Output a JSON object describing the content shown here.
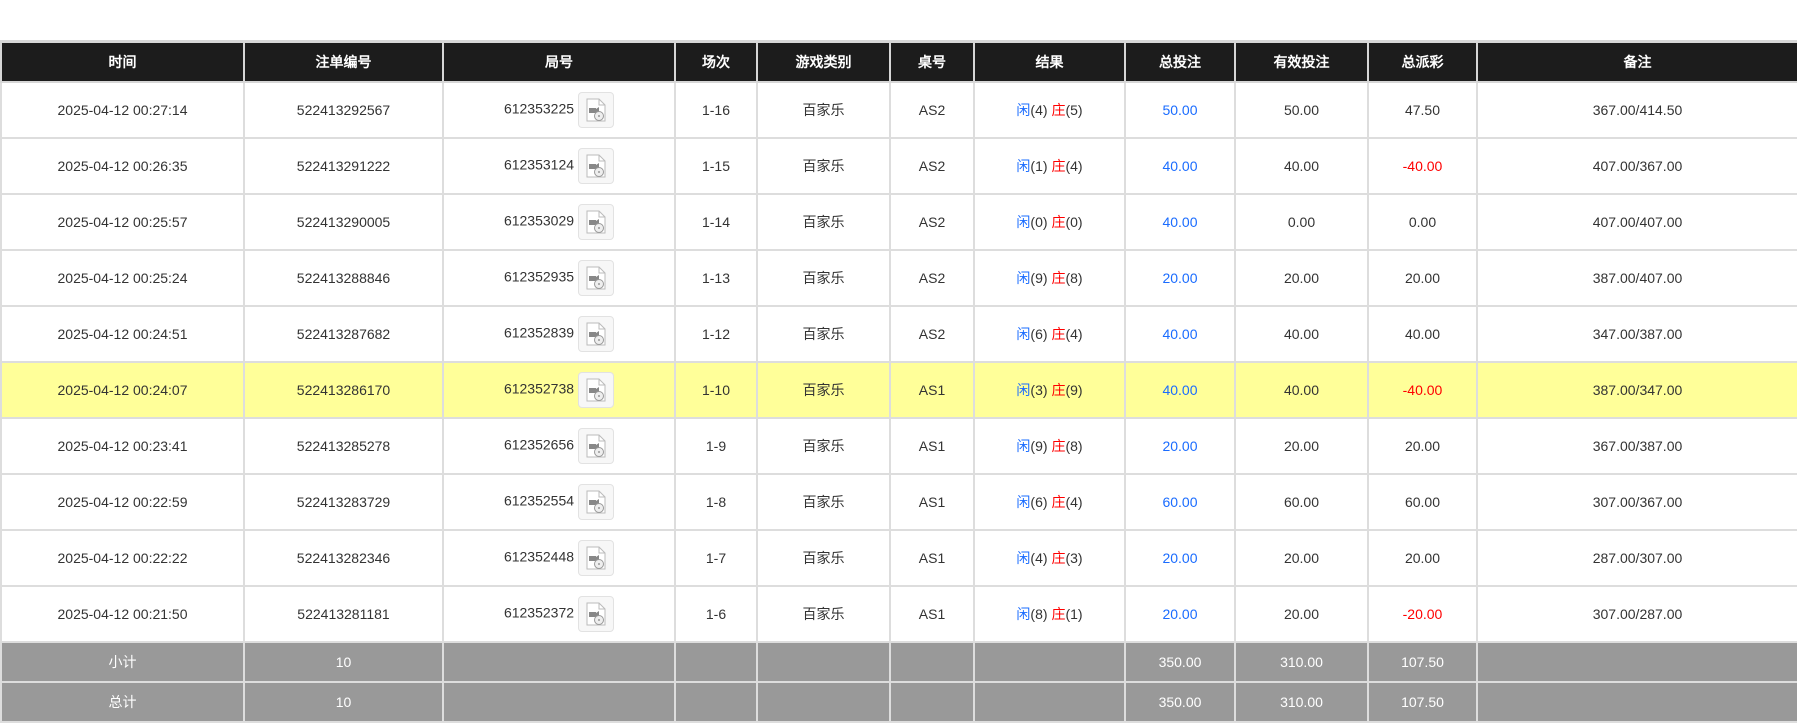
{
  "headers": [
    "时间",
    "注单编号",
    "局号",
    "场次",
    "游戏类别",
    "桌号",
    "结果",
    "总投注",
    "有效投注",
    "总派彩",
    "备注"
  ],
  "rows": [
    {
      "time": "2025-04-12 00:27:14",
      "bet_id": "522413292567",
      "round": "612353225",
      "session": "1-16",
      "game": "百家乐",
      "table": "AS2",
      "player_label": "闲",
      "player": "(4)",
      "banker_label": "庄",
      "banker": "(5)",
      "total_bet": "50.00",
      "valid_bet": "50.00",
      "payout": "47.50",
      "payout_negative": false,
      "note": "367.00/414.50",
      "highlight": false
    },
    {
      "time": "2025-04-12 00:26:35",
      "bet_id": "522413291222",
      "round": "612353124",
      "session": "1-15",
      "game": "百家乐",
      "table": "AS2",
      "player_label": "闲",
      "player": "(1)",
      "banker_label": "庄",
      "banker": "(4)",
      "total_bet": "40.00",
      "valid_bet": "40.00",
      "payout": "-40.00",
      "payout_negative": true,
      "note": "407.00/367.00",
      "highlight": false
    },
    {
      "time": "2025-04-12 00:25:57",
      "bet_id": "522413290005",
      "round": "612353029",
      "session": "1-14",
      "game": "百家乐",
      "table": "AS2",
      "player_label": "闲",
      "player": "(0)",
      "banker_label": "庄",
      "banker": "(0)",
      "total_bet": "40.00",
      "valid_bet": "0.00",
      "payout": "0.00",
      "payout_negative": false,
      "note": "407.00/407.00",
      "highlight": false
    },
    {
      "time": "2025-04-12 00:25:24",
      "bet_id": "522413288846",
      "round": "612352935",
      "session": "1-13",
      "game": "百家乐",
      "table": "AS2",
      "player_label": "闲",
      "player": "(9)",
      "banker_label": "庄",
      "banker": "(8)",
      "total_bet": "20.00",
      "valid_bet": "20.00",
      "payout": "20.00",
      "payout_negative": false,
      "note": "387.00/407.00",
      "highlight": false
    },
    {
      "time": "2025-04-12 00:24:51",
      "bet_id": "522413287682",
      "round": "612352839",
      "session": "1-12",
      "game": "百家乐",
      "table": "AS2",
      "player_label": "闲",
      "player": "(6)",
      "banker_label": "庄",
      "banker": "(4)",
      "total_bet": "40.00",
      "valid_bet": "40.00",
      "payout": "40.00",
      "payout_negative": false,
      "note": "347.00/387.00",
      "highlight": false
    },
    {
      "time": "2025-04-12 00:24:07",
      "bet_id": "522413286170",
      "round": "612352738",
      "session": "1-10",
      "game": "百家乐",
      "table": "AS1",
      "player_label": "闲",
      "player": "(3)",
      "banker_label": "庄",
      "banker": "(9)",
      "total_bet": "40.00",
      "valid_bet": "40.00",
      "payout": "-40.00",
      "payout_negative": true,
      "note": "387.00/347.00",
      "highlight": true
    },
    {
      "time": "2025-04-12 00:23:41",
      "bet_id": "522413285278",
      "round": "612352656",
      "session": "1-9",
      "game": "百家乐",
      "table": "AS1",
      "player_label": "闲",
      "player": "(9)",
      "banker_label": "庄",
      "banker": "(8)",
      "total_bet": "20.00",
      "valid_bet": "20.00",
      "payout": "20.00",
      "payout_negative": false,
      "note": "367.00/387.00",
      "highlight": false
    },
    {
      "time": "2025-04-12 00:22:59",
      "bet_id": "522413283729",
      "round": "612352554",
      "session": "1-8",
      "game": "百家乐",
      "table": "AS1",
      "player_label": "闲",
      "player": "(6)",
      "banker_label": "庄",
      "banker": "(4)",
      "total_bet": "60.00",
      "valid_bet": "60.00",
      "payout": "60.00",
      "payout_negative": false,
      "note": "307.00/367.00",
      "highlight": false
    },
    {
      "time": "2025-04-12 00:22:22",
      "bet_id": "522413282346",
      "round": "612352448",
      "session": "1-7",
      "game": "百家乐",
      "table": "AS1",
      "player_label": "闲",
      "player": "(4)",
      "banker_label": "庄",
      "banker": "(3)",
      "total_bet": "20.00",
      "valid_bet": "20.00",
      "payout": "20.00",
      "payout_negative": false,
      "note": "287.00/307.00",
      "highlight": false
    },
    {
      "time": "2025-04-12 00:21:50",
      "bet_id": "522413281181",
      "round": "612352372",
      "session": "1-6",
      "game": "百家乐",
      "table": "AS1",
      "player_label": "闲",
      "player": "(8)",
      "banker_label": "庄",
      "banker": "(1)",
      "total_bet": "20.00",
      "valid_bet": "20.00",
      "payout": "-20.00",
      "payout_negative": true,
      "note": "307.00/287.00",
      "highlight": false
    }
  ],
  "subtotal": {
    "label": "小计",
    "count": "10",
    "total_bet": "350.00",
    "valid_bet": "310.00",
    "payout": "107.50"
  },
  "total": {
    "label": "总计",
    "count": "10",
    "total_bet": "350.00",
    "valid_bet": "310.00",
    "payout": "107.50"
  },
  "colors": {
    "header_bg": "#1c1c1c",
    "highlight": "#ffff99",
    "player": "#1a6cff",
    "banker": "#ff0000",
    "summary_bg": "#999999"
  },
  "icons": {
    "round_video": "video-replay-icon"
  }
}
